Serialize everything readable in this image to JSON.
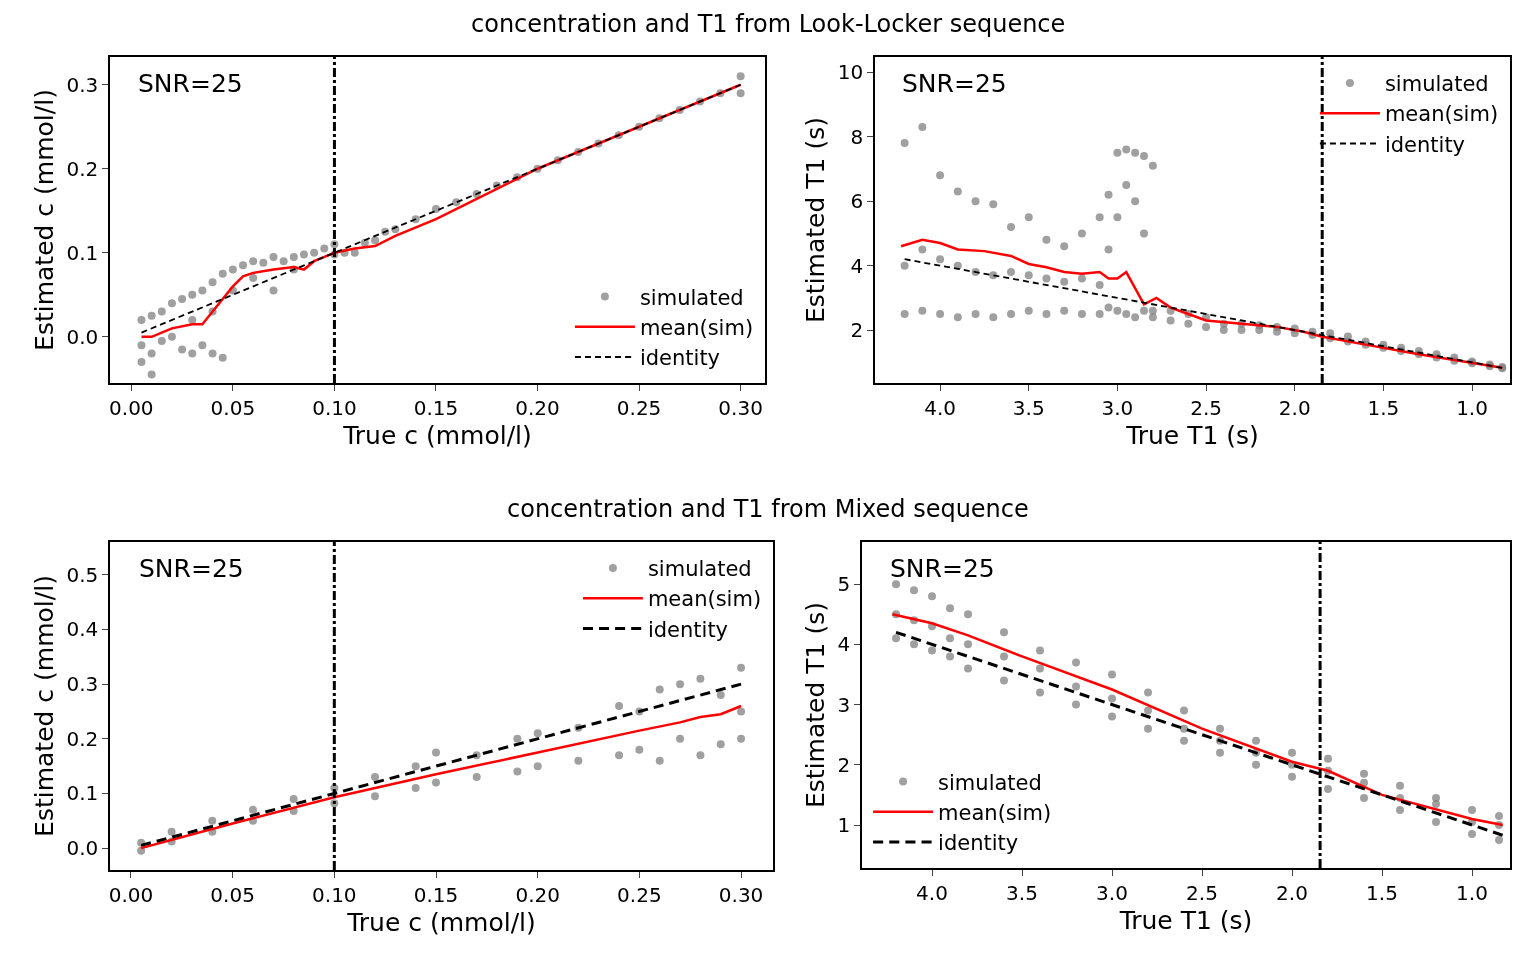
{
  "chart_data": [
    {
      "type": "scatter",
      "title": "concentration and T1 from Look-Locker sequence",
      "xlabel": "True c (mmol/l)",
      "ylabel": "Estimated c (mmol/l)",
      "annotations": [
        "SNR=25"
      ],
      "legend": "bottom right",
      "xlim": [
        -0.0105,
        0.312
      ],
      "ylim": [
        -0.055,
        0.333
      ],
      "xticks": [
        {
          "value": 0,
          "label": "0.00"
        },
        {
          "value": 0.05,
          "label": "0.05"
        },
        {
          "value": 0.1,
          "label": "0.10"
        },
        {
          "value": 0.15,
          "label": "0.15"
        },
        {
          "value": 0.2,
          "label": "0.20"
        },
        {
          "value": 0.25,
          "label": "0.25"
        },
        {
          "value": 0.3,
          "label": "0.30"
        }
      ],
      "yticks": [
        {
          "value": 0,
          "label": "0.0"
        },
        0.1,
        0.2,
        0.3
      ],
      "ref_lines": [
        {
          "axis": "x",
          "value": 0.1,
          "color": "#000000",
          "line_style": "dashdot"
        }
      ],
      "series": [
        {
          "name": "simulated",
          "type": "scatter",
          "marker": "circle",
          "color": "#808080",
          "x": [
            0.005,
            0.005,
            0.005,
            0.01,
            0.01,
            0.01,
            0.015,
            0.015,
            0.02,
            0.02,
            0.025,
            0.025,
            0.03,
            0.03,
            0.03,
            0.035,
            0.035,
            0.04,
            0.04,
            0.04,
            0.045,
            0.045,
            0.05,
            0.05,
            0.055,
            0.06,
            0.06,
            0.065,
            0.07,
            0.07,
            0.075,
            0.08,
            0.08,
            0.085,
            0.09,
            0.095,
            0.1,
            0.1,
            0.105,
            0.11,
            0.115,
            0.12,
            0.125,
            0.13,
            0.14,
            0.15,
            0.16,
            0.17,
            0.18,
            0.19,
            0.2,
            0.21,
            0.22,
            0.23,
            0.24,
            0.25,
            0.26,
            0.27,
            0.28,
            0.29,
            0.3,
            0.3
          ],
          "values": [
            0.02,
            -0.01,
            -0.03,
            0.025,
            -0.02,
            -0.045,
            0.03,
            -0.005,
            0.04,
            0.0,
            0.045,
            -0.015,
            0.05,
            0.02,
            -0.02,
            0.055,
            -0.01,
            0.065,
            0.03,
            -0.02,
            0.075,
            -0.025,
            0.08,
            0.055,
            0.085,
            0.09,
            0.07,
            0.088,
            0.095,
            0.055,
            0.09,
            0.095,
            0.08,
            0.098,
            0.1,
            0.105,
            0.11,
            0.098,
            0.1,
            0.1,
            0.112,
            0.115,
            0.125,
            0.128,
            0.14,
            0.152,
            0.16,
            0.17,
            0.18,
            0.19,
            0.2,
            0.21,
            0.22,
            0.23,
            0.24,
            0.25,
            0.26,
            0.27,
            0.28,
            0.29,
            0.31,
            0.29
          ]
        },
        {
          "name": "mean(sim)",
          "type": "line",
          "marker": "none",
          "line_style": "solid",
          "color": "#ff0000",
          "x": [
            0.005,
            0.01,
            0.02,
            0.03,
            0.035,
            0.04,
            0.045,
            0.05,
            0.055,
            0.06,
            0.07,
            0.08,
            0.085,
            0.09,
            0.1,
            0.11,
            0.12,
            0.13,
            0.15,
            0.2,
            0.25,
            0.3
          ],
          "values": [
            0.0,
            0.0,
            0.01,
            0.015,
            0.015,
            0.03,
            0.045,
            0.06,
            0.072,
            0.076,
            0.08,
            0.083,
            0.08,
            0.09,
            0.1,
            0.105,
            0.108,
            0.12,
            0.14,
            0.2,
            0.25,
            0.3
          ]
        },
        {
          "name": "identity",
          "type": "line",
          "marker": "none",
          "line_style": "dashed",
          "color": "#000000",
          "x": [
            0.005,
            0.3
          ],
          "values": [
            0.005,
            0.3
          ]
        }
      ]
    },
    {
      "type": "scatter",
      "xlabel": "True T1 (s)",
      "ylabel": "Estimated T1 (s)",
      "annotations": [
        "SNR=25"
      ],
      "legend": "top right",
      "xlim": [
        4.367,
        0.786
      ],
      "ylim": [
        0.36,
        10.47
      ],
      "xticks": [
        {
          "value": 4,
          "label": "4.0"
        },
        {
          "value": 3.5,
          "label": "3.5"
        },
        {
          "value": 3,
          "label": "3.0"
        },
        {
          "value": 2.5,
          "label": "2.5"
        },
        {
          "value": 2,
          "label": "2.0"
        },
        {
          "value": 1.5,
          "label": "1.5"
        },
        {
          "value": 1,
          "label": "1.0"
        }
      ],
      "yticks": [
        2,
        4,
        6,
        8,
        10
      ],
      "ref_lines": [
        {
          "axis": "x",
          "value": 1.845,
          "color": "#000000",
          "line_style": "dashdot"
        }
      ],
      "series": [
        {
          "name": "simulated",
          "type": "scatter",
          "marker": "circle",
          "color": "#808080",
          "x": [
            4.2,
            4.2,
            4.2,
            4.1,
            4.1,
            4.1,
            4.0,
            4.0,
            4.0,
            3.9,
            3.9,
            3.9,
            3.8,
            3.8,
            3.8,
            3.7,
            3.7,
            3.7,
            3.6,
            3.6,
            3.6,
            3.5,
            3.5,
            3.5,
            3.4,
            3.4,
            3.4,
            3.3,
            3.3,
            3.3,
            3.2,
            3.2,
            3.2,
            3.1,
            3.1,
            3.1,
            3.05,
            3.05,
            3.05,
            3.0,
            3.0,
            3.0,
            2.95,
            2.95,
            2.95,
            2.9,
            2.9,
            2.9,
            2.85,
            2.85,
            2.85,
            2.8,
            2.8,
            2.8,
            2.7,
            2.7,
            2.6,
            2.6,
            2.5,
            2.5,
            2.4,
            2.4,
            2.3,
            2.3,
            2.2,
            2.2,
            2.1,
            2.1,
            2.0,
            2.0,
            1.9,
            1.9,
            1.8,
            1.8,
            1.7,
            1.7,
            1.6,
            1.6,
            1.5,
            1.5,
            1.4,
            1.4,
            1.3,
            1.3,
            1.2,
            1.2,
            1.1,
            1.1,
            1.0,
            1.0,
            0.9,
            0.9,
            0.83,
            0.83
          ],
          "values": [
            2.5,
            4.0,
            7.8,
            2.6,
            4.5,
            8.3,
            2.5,
            4.2,
            6.8,
            2.4,
            4.0,
            6.3,
            2.5,
            3.8,
            6.0,
            2.4,
            3.7,
            5.9,
            2.5,
            3.8,
            5.2,
            2.6,
            3.7,
            5.5,
            2.5,
            3.6,
            4.8,
            2.6,
            3.5,
            4.6,
            2.5,
            3.6,
            5.0,
            2.5,
            3.4,
            5.5,
            2.7,
            4.5,
            6.2,
            2.6,
            5.5,
            7.5,
            2.5,
            6.5,
            7.6,
            2.4,
            6.0,
            7.5,
            2.6,
            5.0,
            7.4,
            2.4,
            2.6,
            7.1,
            2.3,
            2.6,
            2.2,
            2.5,
            2.1,
            2.4,
            2.0,
            2.2,
            2.0,
            2.2,
            2.0,
            2.15,
            1.95,
            2.1,
            1.9,
            2.05,
            1.85,
            1.95,
            1.75,
            1.9,
            1.65,
            1.8,
            1.55,
            1.65,
            1.45,
            1.55,
            1.35,
            1.45,
            1.25,
            1.35,
            1.15,
            1.25,
            1.05,
            1.15,
            0.97,
            1.03,
            0.88,
            0.93,
            0.82,
            0.86
          ]
        },
        {
          "name": "mean(sim)",
          "type": "line",
          "marker": "none",
          "line_style": "solid",
          "color": "#ff0000",
          "x": [
            4.22,
            4.1,
            4.0,
            3.9,
            3.75,
            3.6,
            3.5,
            3.4,
            3.3,
            3.2,
            3.1,
            3.05,
            3.0,
            2.95,
            2.85,
            2.78,
            2.7,
            2.6,
            2.5,
            2.3,
            2.1,
            1.95,
            1.85,
            1.6,
            1.3,
            0.83
          ],
          "values": [
            4.6,
            4.8,
            4.7,
            4.5,
            4.45,
            4.3,
            4.05,
            3.95,
            3.8,
            3.75,
            3.8,
            3.6,
            3.6,
            3.8,
            2.8,
            3.0,
            2.7,
            2.5,
            2.3,
            2.2,
            2.1,
            1.95,
            1.8,
            1.55,
            1.25,
            0.83
          ]
        },
        {
          "name": "identity",
          "type": "line",
          "marker": "none",
          "line_style": "dashed",
          "color": "#000000",
          "x": [
            4.2,
            0.83
          ],
          "values": [
            4.2,
            0.83
          ]
        }
      ]
    },
    {
      "type": "scatter",
      "title": "concentration and T1 from Mixed sequence",
      "xlabel": "True c (mmol/l)",
      "ylabel": "Estimated c (mmol/l)",
      "annotations": [
        "SNR=25"
      ],
      "legend": "top right",
      "xlim": [
        -0.0103,
        0.3157
      ],
      "ylim": [
        -0.04,
        0.56
      ],
      "xticks": [
        {
          "value": 0,
          "label": "0.00"
        },
        {
          "value": 0.05,
          "label": "0.05"
        },
        {
          "value": 0.1,
          "label": "0.10"
        },
        {
          "value": 0.15,
          "label": "0.15"
        },
        {
          "value": 0.2,
          "label": "0.20"
        },
        {
          "value": 0.25,
          "label": "0.25"
        },
        {
          "value": 0.3,
          "label": "0.30"
        }
      ],
      "yticks": [
        {
          "value": 0,
          "label": "0.0"
        },
        0.1,
        0.2,
        0.3,
        0.4,
        0.5
      ],
      "ref_lines": [
        {
          "axis": "x",
          "value": 0.1,
          "color": "#000000",
          "line_style": "dashdot"
        }
      ],
      "series": [
        {
          "name": "simulated",
          "type": "scatter",
          "marker": "circle",
          "color": "#808080",
          "x": [
            0.005,
            0.005,
            0.02,
            0.02,
            0.04,
            0.04,
            0.06,
            0.06,
            0.08,
            0.08,
            0.1,
            0.1,
            0.12,
            0.12,
            0.14,
            0.14,
            0.15,
            0.15,
            0.17,
            0.17,
            0.19,
            0.19,
            0.2,
            0.2,
            0.22,
            0.22,
            0.24,
            0.24,
            0.25,
            0.25,
            0.26,
            0.26,
            0.27,
            0.27,
            0.28,
            0.28,
            0.29,
            0.29,
            0.3,
            0.3,
            0.3
          ],
          "values": [
            -0.005,
            0.01,
            0.012,
            0.03,
            0.03,
            0.05,
            0.05,
            0.07,
            0.068,
            0.09,
            0.082,
            0.11,
            0.095,
            0.13,
            0.11,
            0.15,
            0.12,
            0.175,
            0.13,
            0.17,
            0.14,
            0.2,
            0.15,
            0.21,
            0.16,
            0.22,
            0.17,
            0.26,
            0.18,
            0.25,
            0.16,
            0.29,
            0.2,
            0.3,
            0.17,
            0.31,
            0.19,
            0.28,
            0.2,
            0.25,
            0.33
          ]
        },
        {
          "name": "mean(sim)",
          "type": "line",
          "marker": "none",
          "line_style": "solid",
          "color": "#ff0000",
          "x": [
            0.005,
            0.05,
            0.1,
            0.15,
            0.2,
            0.25,
            0.27,
            0.28,
            0.29,
            0.3
          ],
          "values": [
            0.0,
            0.045,
            0.093,
            0.135,
            0.175,
            0.215,
            0.23,
            0.24,
            0.245,
            0.26
          ]
        },
        {
          "name": "identity",
          "type": "line",
          "marker": "none",
          "line_style": "dashed",
          "color": "#000000",
          "x": [
            0.005,
            0.3
          ],
          "values": [
            0.005,
            0.3
          ]
        }
      ]
    },
    {
      "type": "scatter",
      "xlabel": "True T1 (s)",
      "ylabel": "Estimated T1 (s)",
      "annotations": [
        "SNR=25"
      ],
      "legend": "bottom left",
      "xlim": [
        4.389,
        0.789
      ],
      "ylim": [
        0.286,
        5.7
      ],
      "xticks": [
        {
          "value": 4,
          "label": "4.0"
        },
        {
          "value": 3.5,
          "label": "3.5"
        },
        {
          "value": 3,
          "label": "3.0"
        },
        {
          "value": 2.5,
          "label": "2.5"
        },
        {
          "value": 2,
          "label": "2.0"
        },
        {
          "value": 1.5,
          "label": "1.5"
        },
        {
          "value": 1,
          "label": "1.0"
        }
      ],
      "yticks": [
        1,
        2,
        3,
        4,
        5
      ],
      "ref_lines": [
        {
          "axis": "x",
          "value": 1.844,
          "color": "#000000",
          "line_style": "dashdot"
        }
      ],
      "series": [
        {
          "name": "simulated",
          "type": "scatter",
          "marker": "circle",
          "color": "#808080",
          "x": [
            4.2,
            4.2,
            4.2,
            4.1,
            4.1,
            4.1,
            4.0,
            4.0,
            4.0,
            3.9,
            3.9,
            3.9,
            3.8,
            3.8,
            3.8,
            3.6,
            3.6,
            3.6,
            3.4,
            3.4,
            3.4,
            3.2,
            3.2,
            3.2,
            3.0,
            3.0,
            3.0,
            2.8,
            2.8,
            2.8,
            2.6,
            2.6,
            2.6,
            2.4,
            2.4,
            2.4,
            2.2,
            2.2,
            2.2,
            2.0,
            2.0,
            2.0,
            1.8,
            1.8,
            1.8,
            1.6,
            1.6,
            1.6,
            1.4,
            1.4,
            1.4,
            1.2,
            1.2,
            1.2,
            1.0,
            1.0,
            1.0,
            0.85,
            0.85,
            0.85
          ],
          "values": [
            4.1,
            4.5,
            5.0,
            4.0,
            4.4,
            4.9,
            3.9,
            4.3,
            4.8,
            3.8,
            4.1,
            4.6,
            3.6,
            4.0,
            4.5,
            3.4,
            3.8,
            4.2,
            3.2,
            3.6,
            3.9,
            3.0,
            3.3,
            3.7,
            2.8,
            3.1,
            3.5,
            2.6,
            2.9,
            3.2,
            2.4,
            2.6,
            2.9,
            2.2,
            2.4,
            2.6,
            2.0,
            2.2,
            2.4,
            1.8,
            2.0,
            2.2,
            1.6,
            1.9,
            2.1,
            1.45,
            1.7,
            1.85,
            1.25,
            1.45,
            1.65,
            1.05,
            1.35,
            1.45,
            0.85,
            1.05,
            1.25,
            0.75,
            1.0,
            1.15
          ]
        },
        {
          "name": "mean(sim)",
          "type": "line",
          "marker": "none",
          "line_style": "solid",
          "color": "#ff0000",
          "x": [
            4.22,
            4.0,
            3.8,
            3.5,
            3.0,
            2.5,
            2.0,
            1.8,
            1.5,
            1.0,
            0.83
          ],
          "values": [
            4.5,
            4.35,
            4.15,
            3.8,
            3.25,
            2.6,
            2.05,
            1.9,
            1.5,
            1.1,
            1.0
          ]
        },
        {
          "name": "identity",
          "type": "line",
          "marker": "none",
          "line_style": "dashed",
          "color": "#000000",
          "x": [
            4.2,
            0.83
          ],
          "values": [
            4.2,
            0.83
          ]
        }
      ]
    }
  ]
}
